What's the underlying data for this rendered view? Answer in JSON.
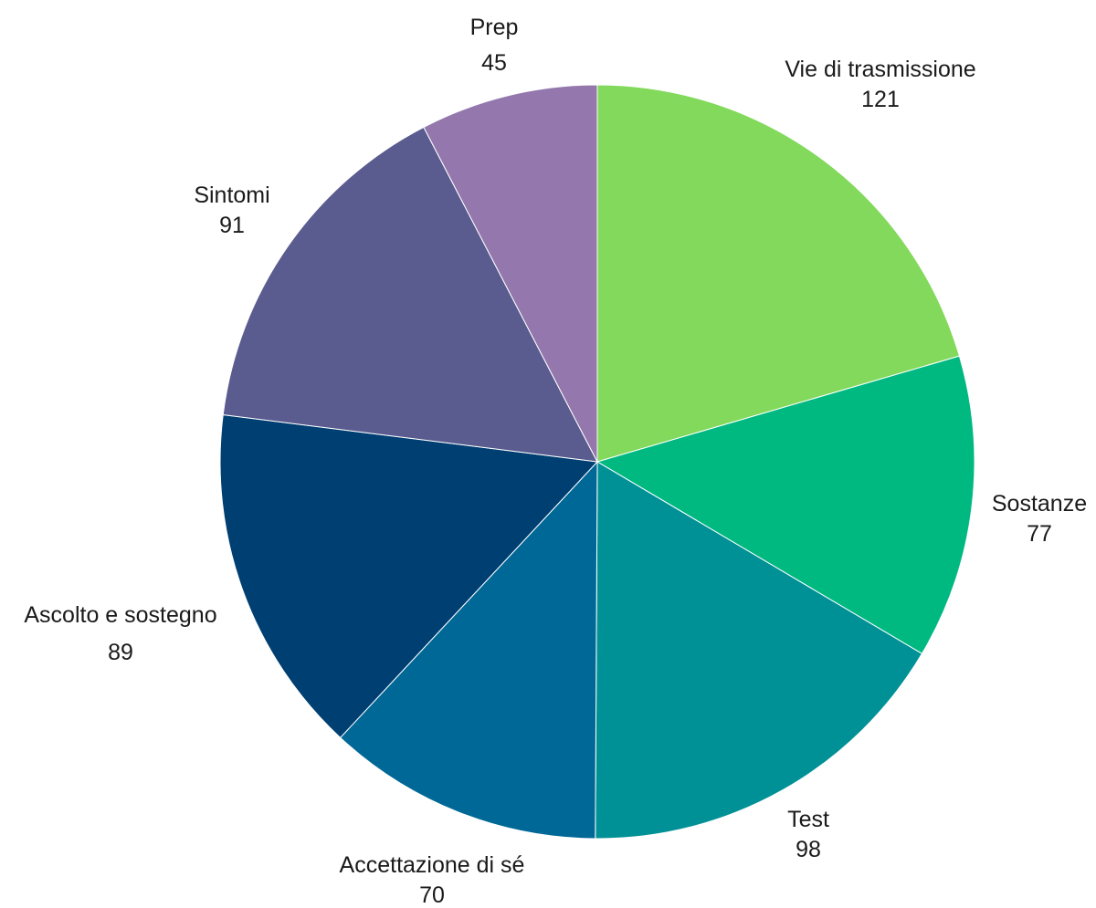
{
  "chart_data": {
    "type": "pie",
    "categories": [
      "Vie di trasmissione",
      "Sostanze",
      "Test",
      "Accettazione di sé",
      "Ascolto e sostegno",
      "Sintomi",
      "Prep"
    ],
    "values": [
      121,
      77,
      98,
      70,
      89,
      91,
      45
    ],
    "colors": [
      "#82d95b",
      "#00b981",
      "#009196",
      "#006896",
      "#003f72",
      "#5a5b8f",
      "#9478ad"
    ],
    "start": "12 o'clock",
    "direction": "clockwise",
    "legend": "none",
    "data_labels": "category name and value, outside each slice"
  }
}
